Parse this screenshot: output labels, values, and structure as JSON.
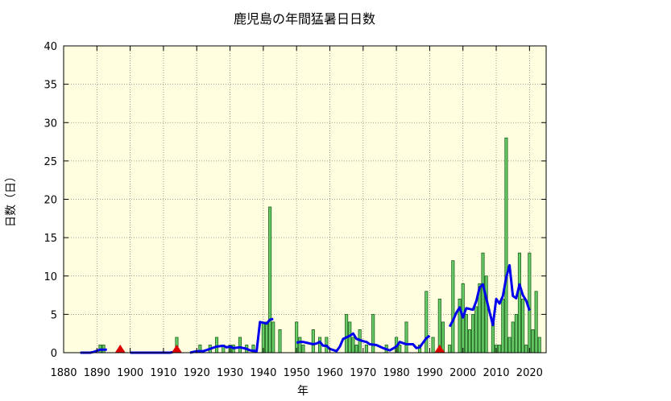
{
  "chart_data": {
    "type": "bar",
    "title": "鹿児島の年間猛暑日日数",
    "xlabel": "年",
    "ylabel": "日数（日）",
    "xlim": [
      1880,
      2025
    ],
    "ylim": [
      0,
      40
    ],
    "xticks": [
      1880,
      1890,
      1900,
      1910,
      1920,
      1930,
      1940,
      1950,
      1960,
      1970,
      1980,
      1990,
      2000,
      2010,
      2020
    ],
    "yticks": [
      0,
      5,
      10,
      15,
      20,
      25,
      30,
      35,
      40
    ],
    "grid": true,
    "series": [
      {
        "kind": "bar",
        "values": [
          [
            1891,
            1
          ],
          [
            1892,
            1
          ],
          [
            1914,
            2
          ],
          [
            1921,
            1
          ],
          [
            1924,
            1
          ],
          [
            1926,
            2
          ],
          [
            1928,
            1
          ],
          [
            1930,
            1
          ],
          [
            1931,
            1
          ],
          [
            1933,
            2
          ],
          [
            1935,
            1
          ],
          [
            1937,
            1
          ],
          [
            1940,
            4
          ],
          [
            1941,
            4
          ],
          [
            1942,
            19
          ],
          [
            1943,
            4
          ],
          [
            1945,
            3
          ],
          [
            1950,
            4
          ],
          [
            1951,
            2
          ],
          [
            1952,
            1
          ],
          [
            1955,
            3
          ],
          [
            1957,
            2
          ],
          [
            1959,
            2
          ],
          [
            1965,
            5
          ],
          [
            1966,
            4
          ],
          [
            1967,
            2
          ],
          [
            1968,
            1
          ],
          [
            1969,
            3
          ],
          [
            1971,
            1
          ],
          [
            1973,
            5
          ],
          [
            1977,
            1
          ],
          [
            1980,
            2
          ],
          [
            1981,
            1
          ],
          [
            1983,
            4
          ],
          [
            1987,
            1
          ],
          [
            1989,
            8
          ],
          [
            1991,
            2
          ],
          [
            1993,
            7
          ],
          [
            1994,
            4
          ],
          [
            1996,
            1
          ],
          [
            1997,
            12
          ],
          [
            1999,
            7
          ],
          [
            2000,
            9
          ],
          [
            2001,
            5
          ],
          [
            2002,
            3
          ],
          [
            2003,
            5
          ],
          [
            2004,
            6
          ],
          [
            2005,
            9
          ],
          [
            2006,
            13
          ],
          [
            2007,
            10
          ],
          [
            2009,
            4
          ],
          [
            2010,
            1
          ],
          [
            2011,
            1
          ],
          [
            2012,
            7
          ],
          [
            2013,
            28
          ],
          [
            2014,
            2
          ],
          [
            2015,
            4
          ],
          [
            2016,
            5
          ],
          [
            2017,
            13
          ],
          [
            2018,
            7
          ],
          [
            2019,
            1
          ],
          [
            2020,
            13
          ],
          [
            2021,
            3
          ],
          [
            2022,
            8
          ],
          [
            2023,
            2
          ]
        ]
      },
      {
        "kind": "moving-average-line",
        "segments": [
          [
            [
              1885,
              0
            ],
            [
              1888,
              0
            ],
            [
              1889,
              0.1
            ],
            [
              1891,
              0.4
            ],
            [
              1892,
              0.4
            ],
            [
              1893,
              0.4
            ]
          ],
          [
            [
              1900,
              0
            ],
            [
              1912,
              0
            ],
            [
              1913,
              0.1
            ]
          ],
          [
            [
              1918,
              0
            ],
            [
              1920,
              0.2
            ],
            [
              1922,
              0.2
            ],
            [
              1924,
              0.5
            ],
            [
              1926,
              0.8
            ],
            [
              1928,
              0.9
            ],
            [
              1929,
              0.7
            ],
            [
              1930,
              0.8
            ],
            [
              1931,
              0.6
            ],
            [
              1933,
              0.7
            ],
            [
              1935,
              0.5
            ],
            [
              1936,
              0.3
            ],
            [
              1938,
              0.2
            ],
            [
              1939,
              4
            ],
            [
              1941,
              3.8
            ],
            [
              1942,
              4.3
            ],
            [
              1943,
              4.4
            ]
          ],
          [
            [
              1950,
              1.3
            ],
            [
              1951,
              1.4
            ],
            [
              1952,
              1.4
            ],
            [
              1954,
              1.2
            ],
            [
              1955,
              1.1
            ],
            [
              1956,
              1.2
            ],
            [
              1957,
              1.4
            ],
            [
              1958,
              0.9
            ],
            [
              1959,
              0.9
            ],
            [
              1960,
              0.5
            ],
            [
              1962,
              0.2
            ],
            [
              1963,
              0.8
            ],
            [
              1964,
              1.8
            ],
            [
              1965,
              2
            ],
            [
              1966,
              2.2
            ],
            [
              1967,
              2.5
            ],
            [
              1968,
              1.8
            ],
            [
              1970,
              1.5
            ],
            [
              1971,
              1.4
            ],
            [
              1972,
              1.1
            ],
            [
              1974,
              1
            ],
            [
              1976,
              0.6
            ],
            [
              1978,
              0.3
            ],
            [
              1980,
              0.8
            ],
            [
              1981,
              1.4
            ],
            [
              1983,
              1.1
            ],
            [
              1985,
              1.1
            ],
            [
              1986,
              0.6
            ],
            [
              1987,
              0.7
            ],
            [
              1989,
              1.9
            ],
            [
              1990,
              2.2
            ]
          ],
          [
            [
              1996,
              3.4
            ],
            [
              1997,
              4.2
            ],
            [
              1998,
              5.2
            ],
            [
              1999,
              5.9
            ],
            [
              2000,
              4.6
            ],
            [
              2001,
              5.8
            ],
            [
              2002,
              5.7
            ],
            [
              2003,
              5.6
            ],
            [
              2004,
              6.7
            ],
            [
              2005,
              8.5
            ],
            [
              2006,
              8.9
            ],
            [
              2007,
              7.1
            ],
            [
              2008,
              5.3
            ],
            [
              2009,
              3.6
            ],
            [
              2010,
              7
            ],
            [
              2011,
              6.4
            ],
            [
              2012,
              7.4
            ],
            [
              2013,
              9.8
            ],
            [
              2014,
              11.4
            ],
            [
              2015,
              7.4
            ],
            [
              2016,
              7.1
            ],
            [
              2017,
              8.9
            ],
            [
              2018,
              7.5
            ],
            [
              2019,
              6.8
            ],
            [
              2020,
              5.5
            ]
          ]
        ]
      },
      {
        "kind": "marker",
        "shape": "triangle",
        "x": [
          1897,
          1914,
          1993
        ],
        "y": [
          0,
          0,
          0
        ]
      }
    ],
    "colors": {
      "plot_background": "#ffffe0",
      "bar_fill": "#66cc66",
      "bar_stroke": "#1f5f1f",
      "line": "#0000ee",
      "marker": "#dd0000",
      "grid": "#808080"
    }
  }
}
